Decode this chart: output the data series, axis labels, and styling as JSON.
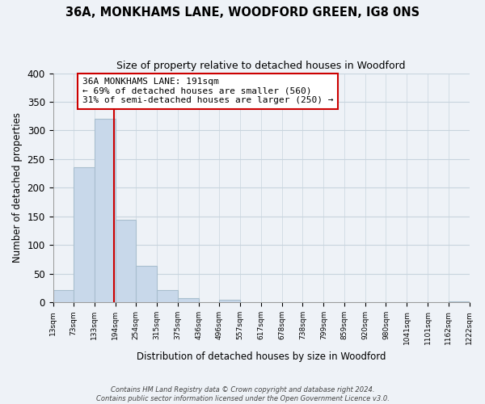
{
  "title": "36A, MONKHAMS LANE, WOODFORD GREEN, IG8 0NS",
  "subtitle": "Size of property relative to detached houses in Woodford",
  "xlabel": "Distribution of detached houses by size in Woodford",
  "ylabel": "Number of detached properties",
  "bin_edges": [
    13,
    73,
    133,
    194,
    254,
    315,
    375,
    436,
    496,
    557,
    617,
    678,
    738,
    799,
    859,
    920,
    980,
    1041,
    1101,
    1162,
    1222
  ],
  "bin_counts": [
    22,
    236,
    320,
    144,
    64,
    21,
    7,
    0,
    4,
    0,
    0,
    0,
    0,
    0,
    0,
    0,
    0,
    0,
    0,
    2
  ],
  "bar_color": "#c8d8ea",
  "bar_edge_color": "#a8bece",
  "property_size": 191,
  "vline_color": "#cc0000",
  "annotation_line1": "36A MONKHAMS LANE: 191sqm",
  "annotation_line2": "← 69% of detached houses are smaller (560)",
  "annotation_line3": "31% of semi-detached houses are larger (250) →",
  "annotation_box_color": "#ffffff",
  "annotation_box_edge": "#cc0000",
  "ylim": [
    0,
    400
  ],
  "yticks": [
    0,
    50,
    100,
    150,
    200,
    250,
    300,
    350,
    400
  ],
  "footer_line1": "Contains HM Land Registry data © Crown copyright and database right 2024.",
  "footer_line2": "Contains public sector information licensed under the Open Government Licence v3.0.",
  "bg_color": "#eef2f7",
  "plot_bg_color": "#eef2f7",
  "grid_color": "#c8d4de"
}
